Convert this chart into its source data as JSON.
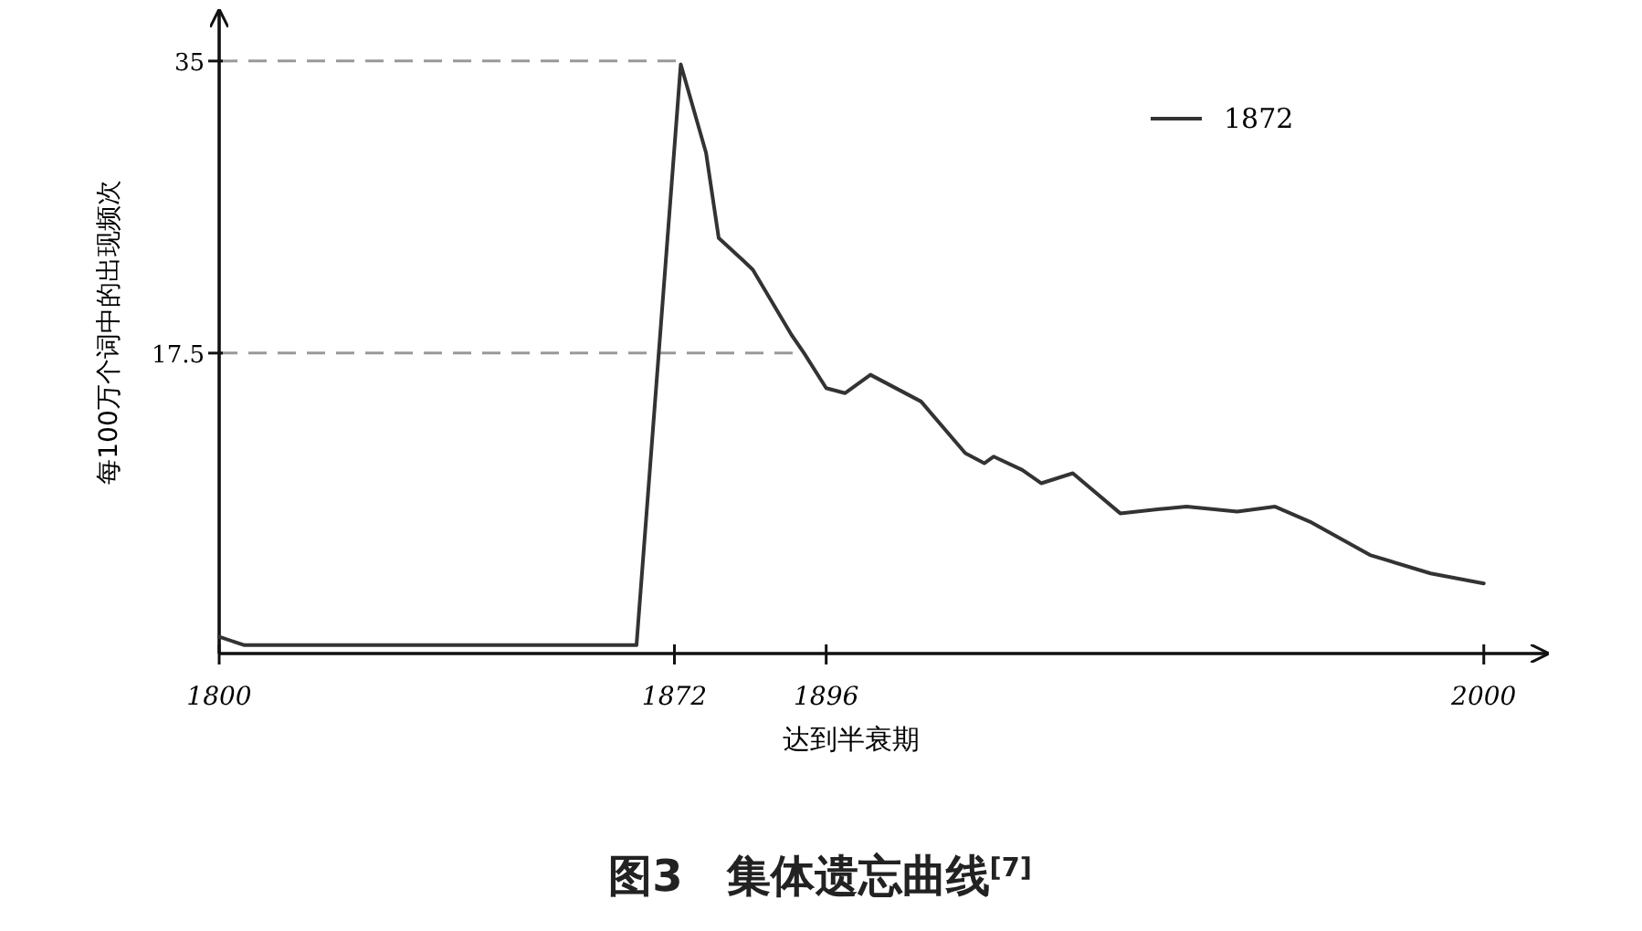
{
  "chart_data": {
    "type": "line",
    "title": "图3　集体遗忘曲线$^{[7]}$",
    "xlabel": "达到半衰期",
    "ylabel": "每100万个词中的出现频次",
    "series": [
      {
        "name": "1872",
        "color": "#333333",
        "x": [
          1800,
          1804,
          1830,
          1866,
          1873,
          1877,
          1879,
          1883,
          1884.4,
          1890.5,
          1892.5,
          1896,
          1899,
          1903,
          1911,
          1918,
          1921,
          1922.5,
          1927,
          1930,
          1935,
          1942.5,
          1950,
          1953,
          1961,
          1967,
          1972.5,
          1982,
          1991.6,
          2000
        ],
        "values": [
          0.5,
          0,
          0,
          0,
          34.8,
          29.5,
          24.4,
          23,
          22.5,
          18.6,
          17.5,
          15.4,
          15.1,
          16.2,
          14.6,
          11.5,
          10.9,
          11.3,
          10.5,
          9.7,
          10.3,
          7.9,
          8.2,
          8.3,
          8.0,
          8.3,
          7.4,
          5.4,
          4.3,
          3.7
        ]
      }
    ],
    "xlim": [
      1800,
      2010
    ],
    "ylim": [
      -0.5,
      38
    ],
    "xticks": [
      1800,
      1872,
      1896,
      2000
    ],
    "yticks": [
      35,
      17.5
    ],
    "ref_lines": [
      {
        "axis": "y",
        "value": 35,
        "color": "#999999",
        "line_style": "dashed"
      },
      {
        "axis": "y",
        "value": 17.5,
        "color": "#999999",
        "line_style": "dashed"
      }
    ],
    "legend": "top right",
    "grid": false,
    "marker": "none",
    "line_style": "solid"
  }
}
